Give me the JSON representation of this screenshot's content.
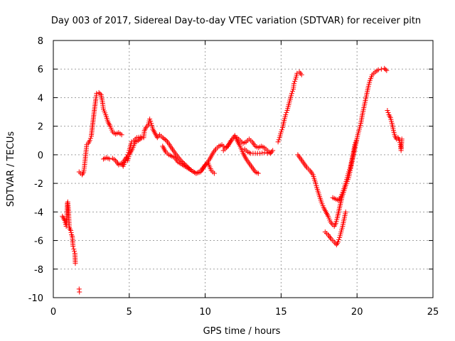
{
  "chart_data": {
    "type": "scatter",
    "title": "Day 003 of 2017, Sidereal Day-to-day VTEC variation (SDTVAR) for receiver pitn",
    "xlabel": "GPS time / hours",
    "ylabel": "SDTVAR / TECUs",
    "xlim": [
      0,
      25
    ],
    "ylim": [
      -10,
      8
    ],
    "x_ticks": [
      0,
      5,
      10,
      15,
      20,
      25
    ],
    "y_ticks": [
      -10,
      -8,
      -6,
      -4,
      -2,
      0,
      2,
      4,
      6,
      8
    ],
    "x_tick_labels": [
      "0",
      "5",
      "10",
      "15",
      "20",
      "25"
    ],
    "y_tick_labels": [
      "-10",
      "-8",
      "-6",
      "-4",
      "-2",
      "0",
      "2",
      "4",
      "6",
      "8"
    ],
    "grid": true,
    "marker": "+",
    "series": [
      {
        "color": "#ff0000",
        "segments": [
          [
            [
              0.6,
              -4.3
            ],
            [
              0.75,
              -4.6
            ],
            [
              0.85,
              -5.0
            ],
            [
              0.9,
              -4.2
            ],
            [
              0.92,
              -3.4
            ],
            [
              0.95,
              -3.3
            ],
            [
              1.0,
              -3.8
            ],
            [
              1.05,
              -5.1
            ],
            [
              1.15,
              -5.3
            ],
            [
              1.2,
              -5.6
            ],
            [
              1.25,
              -5.7
            ],
            [
              1.3,
              -6.4
            ],
            [
              1.35,
              -6.6
            ],
            [
              1.42,
              -6.9
            ],
            [
              1.45,
              -7.6
            ]
          ],
          [
            [
              1.7,
              -9.4
            ],
            [
              1.72,
              -9.6
            ]
          ],
          [
            [
              1.7,
              -1.2
            ],
            [
              1.8,
              -1.3
            ],
            [
              1.9,
              -1.4
            ],
            [
              2.0,
              -1.2
            ],
            [
              2.05,
              -0.8
            ],
            [
              2.1,
              -0.3
            ],
            [
              2.15,
              0.2
            ],
            [
              2.2,
              0.7
            ],
            [
              2.3,
              0.8
            ],
            [
              2.4,
              1.0
            ],
            [
              2.5,
              1.3
            ],
            [
              2.6,
              2.2
            ],
            [
              2.7,
              3.1
            ],
            [
              2.8,
              3.9
            ],
            [
              2.85,
              4.3
            ],
            [
              3.0,
              4.35
            ],
            [
              3.15,
              4.2
            ],
            [
              3.25,
              3.6
            ],
            [
              3.3,
              3.2
            ],
            [
              3.45,
              2.8
            ],
            [
              3.6,
              2.3
            ],
            [
              3.75,
              2.0
            ],
            [
              3.9,
              1.6
            ],
            [
              4.1,
              1.45
            ],
            [
              4.3,
              1.55
            ],
            [
              4.5,
              1.4
            ]
          ],
          [
            [
              3.3,
              -0.3
            ],
            [
              3.5,
              -0.2
            ],
            [
              3.7,
              -0.3
            ],
            [
              3.9,
              -0.25
            ],
            [
              4.1,
              -0.4
            ],
            [
              4.3,
              -0.7
            ],
            [
              4.5,
              -0.6
            ],
            [
              4.6,
              -0.8
            ],
            [
              4.8,
              -0.3
            ],
            [
              4.9,
              0.0
            ],
            [
              5.0,
              0.3
            ],
            [
              5.15,
              0.9
            ],
            [
              5.3,
              1.0
            ],
            [
              5.5,
              1.2
            ],
            [
              5.75,
              1.25
            ],
            [
              5.95,
              1.2
            ],
            [
              6.0,
              1.7
            ],
            [
              6.1,
              1.9
            ],
            [
              6.25,
              2.1
            ],
            [
              6.35,
              2.5
            ],
            [
              6.45,
              2.2
            ],
            [
              6.55,
              1.8
            ],
            [
              6.7,
              1.5
            ],
            [
              6.85,
              1.2
            ],
            [
              7.0,
              1.4
            ],
            [
              7.2,
              1.2
            ],
            [
              7.45,
              1.0
            ],
            [
              7.65,
              0.7
            ],
            [
              7.9,
              0.3
            ],
            [
              8.1,
              0.0
            ],
            [
              8.4,
              -0.4
            ],
            [
              8.8,
              -0.8
            ],
            [
              9.1,
              -1.1
            ],
            [
              9.4,
              -1.3
            ],
            [
              9.6,
              -1.2
            ],
            [
              9.8,
              -1.0
            ],
            [
              10.0,
              -0.7
            ],
            [
              10.2,
              -0.6
            ],
            [
              10.4,
              -1.1
            ],
            [
              10.6,
              -1.3
            ]
          ],
          [
            [
              4.6,
              -0.5
            ],
            [
              4.8,
              -0.2
            ],
            [
              4.9,
              -0.4
            ],
            [
              5.0,
              0.0
            ],
            [
              5.2,
              0.4
            ],
            [
              5.4,
              0.9
            ],
            [
              5.6,
              1.0
            ],
            [
              5.8,
              1.15
            ]
          ],
          [
            [
              7.2,
              0.6
            ],
            [
              7.4,
              0.2
            ],
            [
              7.6,
              0.0
            ],
            [
              7.8,
              -0.1
            ],
            [
              8.0,
              -0.2
            ],
            [
              8.2,
              -0.5
            ],
            [
              8.5,
              -0.7
            ],
            [
              8.8,
              -0.9
            ],
            [
              9.1,
              -1.1
            ],
            [
              9.4,
              -1.3
            ],
            [
              9.7,
              -1.2
            ],
            [
              9.9,
              -0.9
            ],
            [
              10.1,
              -0.6
            ],
            [
              10.3,
              -0.3
            ],
            [
              10.5,
              0.1
            ],
            [
              10.7,
              0.4
            ],
            [
              10.9,
              0.6
            ],
            [
              11.1,
              0.7
            ],
            [
              11.3,
              0.5
            ],
            [
              11.5,
              0.6
            ],
            [
              11.7,
              1.0
            ],
            [
              11.9,
              1.25
            ],
            [
              12.1,
              1.2
            ],
            [
              12.3,
              1.0
            ],
            [
              12.5,
              0.8
            ],
            [
              12.7,
              0.9
            ],
            [
              12.9,
              1.1
            ],
            [
              13.1,
              0.9
            ],
            [
              13.3,
              0.6
            ],
            [
              13.5,
              0.5
            ],
            [
              13.7,
              0.6
            ],
            [
              13.9,
              0.5
            ],
            [
              14.1,
              0.3
            ],
            [
              14.3,
              0.1
            ],
            [
              14.45,
              0.3
            ]
          ],
          [
            [
              11.2,
              0.3
            ],
            [
              11.4,
              0.5
            ],
            [
              11.6,
              0.8
            ],
            [
              11.8,
              1.1
            ],
            [
              11.95,
              1.35
            ],
            [
              12.1,
              1.0
            ],
            [
              12.3,
              0.6
            ],
            [
              12.5,
              0.1
            ],
            [
              12.7,
              -0.3
            ],
            [
              12.9,
              -0.6
            ],
            [
              13.1,
              -0.9
            ],
            [
              13.3,
              -1.2
            ],
            [
              13.5,
              -1.3
            ]
          ],
          [
            [
              12.6,
              0.4
            ],
            [
              12.8,
              0.2
            ],
            [
              13.0,
              0.1
            ],
            [
              13.3,
              0.1
            ],
            [
              13.6,
              0.1
            ],
            [
              13.9,
              0.15
            ],
            [
              14.1,
              0.1
            ],
            [
              14.35,
              0.2
            ]
          ],
          [
            [
              14.8,
              0.9
            ],
            [
              14.9,
              1.2
            ],
            [
              15.0,
              1.6
            ],
            [
              15.1,
              1.9
            ],
            [
              15.2,
              2.4
            ],
            [
              15.3,
              2.8
            ],
            [
              15.4,
              3.1
            ],
            [
              15.5,
              3.5
            ],
            [
              15.6,
              3.9
            ],
            [
              15.7,
              4.3
            ],
            [
              15.8,
              4.6
            ],
            [
              15.85,
              5.0
            ],
            [
              15.95,
              5.3
            ],
            [
              16.05,
              5.7
            ],
            [
              16.2,
              5.8
            ],
            [
              16.35,
              5.6
            ]
          ],
          [
            [
              16.1,
              0.0
            ],
            [
              16.3,
              -0.3
            ],
            [
              16.5,
              -0.6
            ],
            [
              16.7,
              -0.9
            ],
            [
              16.9,
              -1.1
            ],
            [
              17.1,
              -1.4
            ],
            [
              17.25,
              -1.9
            ],
            [
              17.35,
              -2.3
            ],
            [
              17.5,
              -2.8
            ],
            [
              17.65,
              -3.3
            ],
            [
              17.8,
              -3.7
            ],
            [
              17.95,
              -4.0
            ],
            [
              18.1,
              -4.3
            ],
            [
              18.25,
              -4.7
            ],
            [
              18.4,
              -4.9
            ],
            [
              18.5,
              -5.0
            ],
            [
              18.6,
              -4.8
            ],
            [
              18.7,
              -4.4
            ],
            [
              18.85,
              -3.7
            ],
            [
              19.0,
              -3.0
            ],
            [
              19.15,
              -2.5
            ],
            [
              19.3,
              -2.0
            ],
            [
              19.45,
              -1.6
            ],
            [
              19.55,
              -1.1
            ],
            [
              19.65,
              -0.6
            ],
            [
              19.75,
              -0.1
            ],
            [
              19.85,
              0.4
            ],
            [
              19.95,
              0.9
            ],
            [
              20.05,
              1.4
            ],
            [
              20.15,
              1.8
            ],
            [
              20.25,
              2.2
            ],
            [
              20.35,
              2.8
            ],
            [
              20.45,
              3.3
            ],
            [
              20.55,
              3.8
            ],
            [
              20.65,
              4.3
            ],
            [
              20.75,
              4.8
            ],
            [
              20.85,
              5.2
            ],
            [
              21.0,
              5.6
            ],
            [
              21.2,
              5.8
            ],
            [
              21.4,
              5.95
            ],
            [
              21.6,
              6.0
            ],
            [
              21.8,
              6.05
            ],
            [
              21.95,
              5.9
            ]
          ],
          [
            [
              17.9,
              -5.4
            ],
            [
              18.1,
              -5.6
            ],
            [
              18.3,
              -5.9
            ],
            [
              18.5,
              -6.1
            ],
            [
              18.65,
              -6.3
            ],
            [
              18.75,
              -6.1
            ],
            [
              18.85,
              -5.8
            ],
            [
              18.95,
              -5.4
            ],
            [
              19.05,
              -5.0
            ],
            [
              19.15,
              -4.5
            ],
            [
              19.25,
              -4.0
            ]
          ],
          [
            [
              18.4,
              -3.0
            ],
            [
              18.6,
              -3.1
            ],
            [
              18.8,
              -3.2
            ],
            [
              18.95,
              -2.9
            ],
            [
              19.1,
              -2.5
            ],
            [
              19.25,
              -2.0
            ],
            [
              19.35,
              -1.6
            ],
            [
              19.45,
              -1.2
            ],
            [
              19.55,
              -0.9
            ],
            [
              19.65,
              -0.4
            ],
            [
              19.75,
              0.1
            ],
            [
              19.85,
              0.7
            ],
            [
              19.95,
              1.0
            ]
          ],
          [
            [
              22.0,
              3.1
            ],
            [
              22.1,
              2.8
            ],
            [
              22.2,
              2.6
            ],
            [
              22.3,
              2.2
            ],
            [
              22.4,
              1.7
            ],
            [
              22.5,
              1.3
            ],
            [
              22.6,
              1.1
            ],
            [
              22.7,
              1.2
            ],
            [
              22.8,
              1.0
            ],
            [
              22.85,
              0.7
            ],
            [
              22.9,
              0.3
            ],
            [
              22.95,
              1.1
            ]
          ]
        ]
      }
    ]
  }
}
